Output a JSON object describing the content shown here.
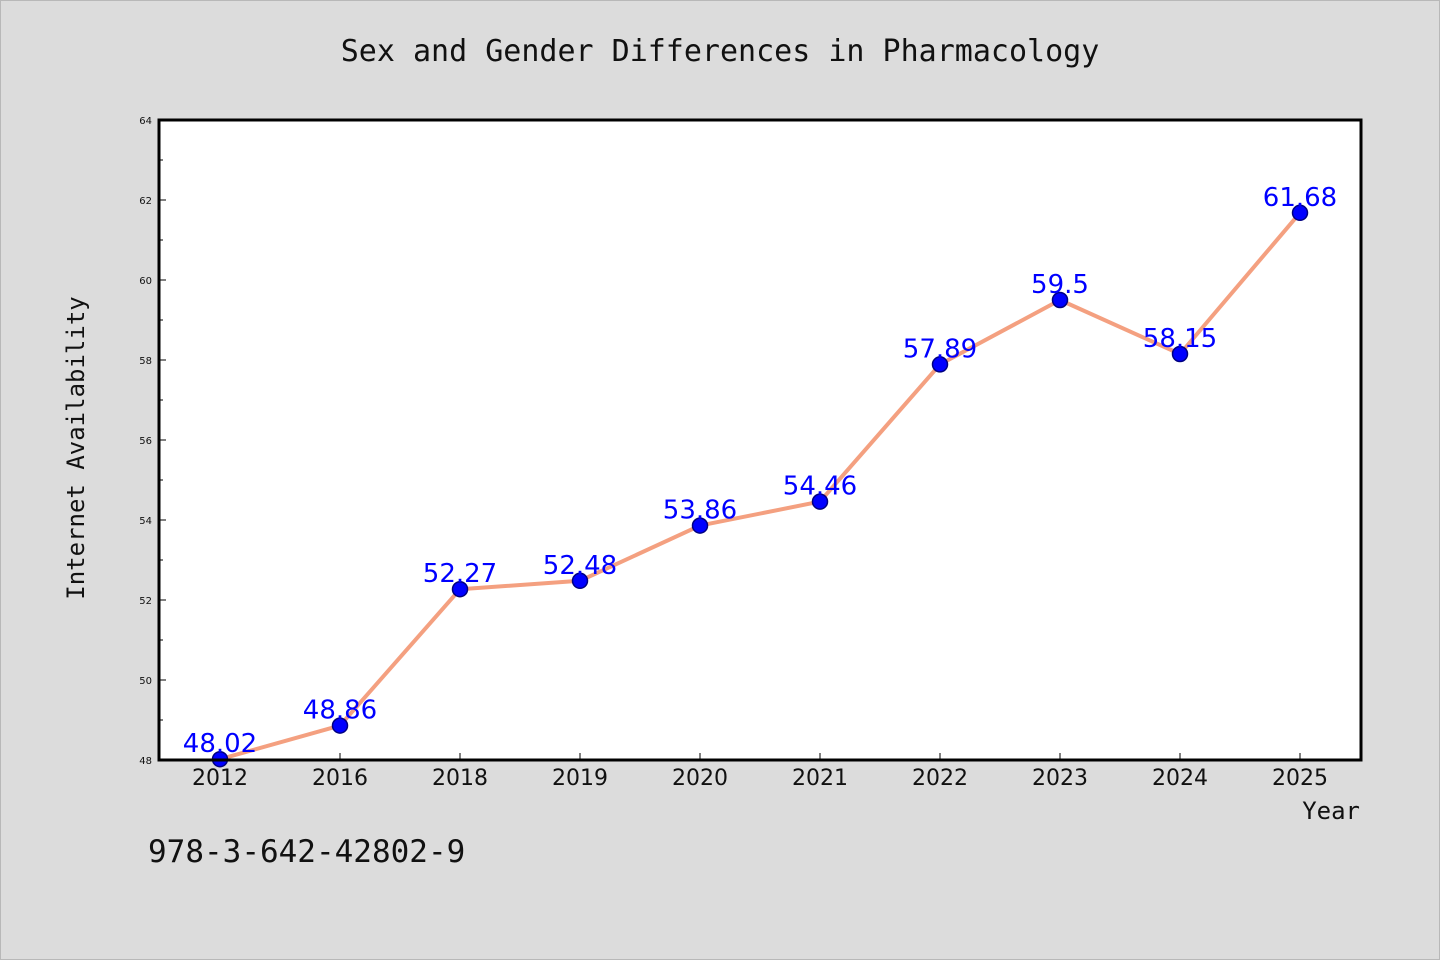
{
  "chart_data": {
    "type": "line",
    "title": "Sex and Gender Differences in Pharmacology",
    "xlabel": "Year",
    "ylabel": "Internet Availability",
    "categories": [
      "2012",
      "2016",
      "2018",
      "2019",
      "2020",
      "2021",
      "2022",
      "2023",
      "2024",
      "2025"
    ],
    "series": [
      {
        "values": [
          48.02,
          48.86,
          52.27,
          52.48,
          53.86,
          54.46,
          57.89,
          59.5,
          58.15,
          61.68
        ],
        "labels": [
          "48.02",
          "48.86",
          "52.27",
          "52.48",
          "53.86",
          "54.46",
          "57.89",
          "59.5",
          "58.15",
          "61.68"
        ]
      }
    ],
    "ylim": [
      48,
      64
    ],
    "y_ticks": [
      "48",
      "50",
      "52",
      "54",
      "56",
      "58",
      "60",
      "62",
      "64"
    ],
    "y_minor_step": 1,
    "grid": false,
    "data_labels": true,
    "colors": {
      "line": "#f4a080",
      "marker": "#0000ff",
      "marker_edge": "#000080",
      "data_label": "#0000ff",
      "plot_bg": "#ffffff",
      "page_bg": "#dcdcdc"
    }
  },
  "footnote": "978-3-642-42802-9"
}
